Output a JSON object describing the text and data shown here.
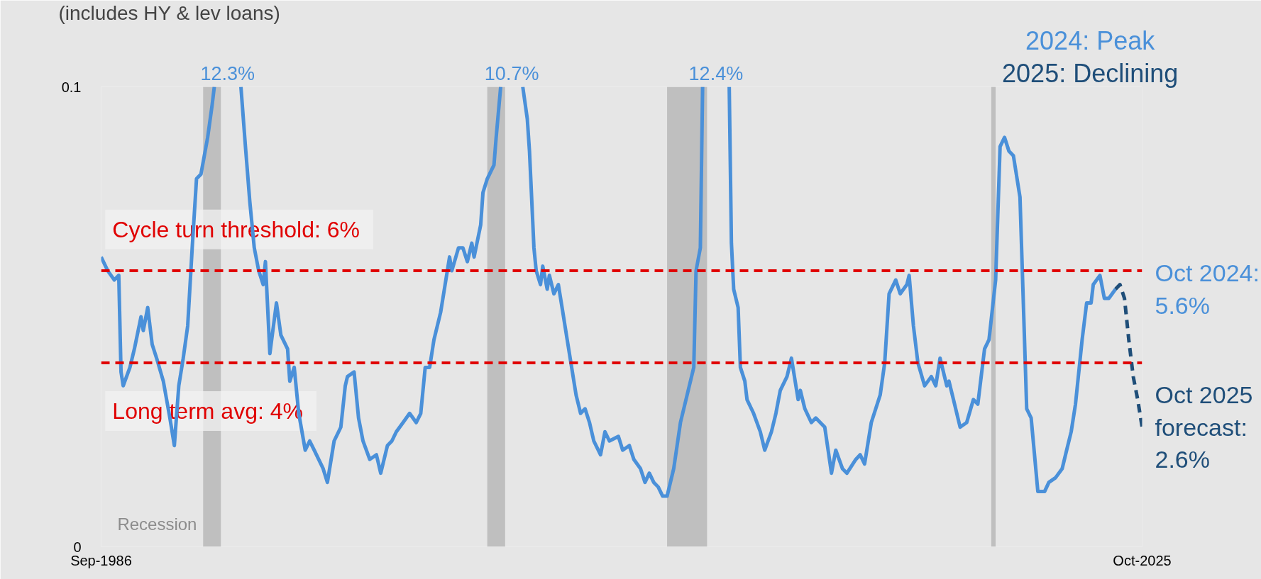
{
  "chart_data": {
    "type": "line",
    "title": "(includes HY & lev loans)",
    "xlim": [
      "1986-09",
      "2025-10"
    ],
    "xticks": [
      {
        "value": "1986-09",
        "label": "Sep-1986"
      },
      {
        "value": "2025-10",
        "label": "Oct-2025"
      }
    ],
    "ylim": [
      0,
      0.1
    ],
    "yticks": [
      0,
      0.1
    ],
    "legend": "top right",
    "marker": "none",
    "series": [
      {
        "name": "2024: Peak",
        "color": "#4a90d9",
        "line_style": "solid",
        "x": [
          "1986-09",
          "1986-12",
          "1987-03",
          "1987-05",
          "1987-06",
          "1987-07",
          "1987-10",
          "1987-12",
          "1988-03",
          "1988-04",
          "1988-06",
          "1988-08",
          "1988-10",
          "1989-01",
          "1989-04",
          "1989-06",
          "1989-08",
          "1989-10",
          "1989-12",
          "1990-02",
          "1990-04",
          "1990-06",
          "1990-09",
          "1990-11",
          "1990-12",
          "1991-06",
          "1991-12",
          "1992-02",
          "1992-04",
          "1992-06",
          "1992-08",
          "1992-10",
          "1992-11",
          "1993-01",
          "1993-04",
          "1993-06",
          "1993-09",
          "1993-10",
          "1993-12",
          "1994-02",
          "1994-05",
          "1994-07",
          "1994-09",
          "1995-01",
          "1995-03",
          "1995-06",
          "1995-09",
          "1995-11",
          "1995-12",
          "1996-03",
          "1996-05",
          "1996-07",
          "1996-10",
          "1997-01",
          "1997-03",
          "1997-06",
          "1997-08",
          "1997-10",
          "1998-01",
          "1998-04",
          "1998-07",
          "1998-09",
          "1998-11",
          "1999-01",
          "1999-03",
          "1999-06",
          "1999-08",
          "1999-10",
          "1999-11",
          "2000-02",
          "2000-04",
          "2000-06",
          "2000-08",
          "2000-09",
          "2000-12",
          "2001-01",
          "2001-03",
          "2001-06",
          "2001-07",
          "2001-09",
          "2002-02",
          "2002-07",
          "2002-09",
          "2002-10",
          "2002-12",
          "2003-01",
          "2003-03",
          "2003-04",
          "2003-06",
          "2003-07",
          "2003-09",
          "2003-11",
          "2004-01",
          "2004-03",
          "2004-05",
          "2004-07",
          "2004-09",
          "2004-11",
          "2005-01",
          "2005-03",
          "2005-06",
          "2005-08",
          "2005-10",
          "2006-02",
          "2006-04",
          "2006-07",
          "2006-09",
          "2006-12",
          "2007-02",
          "2007-04",
          "2007-06",
          "2007-08",
          "2007-10",
          "2007-12",
          "2008-03",
          "2008-06",
          "2008-12",
          "2009-01",
          "2009-03",
          "2009-04",
          "2009-10",
          "2010-04",
          "2010-05",
          "2010-06",
          "2010-08",
          "2010-09",
          "2010-11",
          "2010-12",
          "2011-03",
          "2011-06",
          "2011-08",
          "2011-11",
          "2012-01",
          "2012-03",
          "2012-06",
          "2012-08",
          "2012-11",
          "2012-12",
          "2013-02",
          "2013-05",
          "2013-07",
          "2013-11",
          "2014-02",
          "2014-04",
          "2014-07",
          "2014-09",
          "2015-01",
          "2015-03",
          "2015-05",
          "2015-08",
          "2015-12",
          "2016-02",
          "2016-04",
          "2016-07",
          "2016-09",
          "2016-12",
          "2017-01",
          "2017-03",
          "2017-05",
          "2017-08",
          "2017-11",
          "2018-01",
          "2018-03",
          "2018-06",
          "2018-07",
          "2018-09",
          "2018-12",
          "2019-03",
          "2019-06",
          "2019-08",
          "2019-11",
          "2020-01",
          "2020-04",
          "2020-06",
          "2020-08",
          "2020-10",
          "2020-12",
          "2021-03",
          "2021-06",
          "2021-08",
          "2021-11",
          "2022-02",
          "2022-04",
          "2022-07",
          "2022-10",
          "2022-12",
          "2023-02",
          "2023-04",
          "2023-07",
          "2023-09",
          "2023-11",
          "2023-12",
          "2024-03",
          "2024-05",
          "2024-07",
          "2024-10"
        ],
        "values": [
          0.063,
          0.06,
          0.058,
          0.059,
          0.038,
          0.035,
          0.039,
          0.043,
          0.05,
          0.047,
          0.052,
          0.044,
          0.041,
          0.036,
          0.028,
          0.022,
          0.035,
          0.041,
          0.048,
          0.065,
          0.08,
          0.081,
          0.089,
          0.096,
          0.1,
          null,
          0.1,
          0.087,
          0.075,
          0.065,
          0.06,
          0.057,
          0.062,
          0.042,
          0.053,
          0.046,
          0.043,
          0.036,
          0.039,
          0.029,
          0.021,
          0.023,
          0.021,
          0.017,
          0.014,
          0.023,
          0.026,
          0.035,
          0.037,
          0.038,
          0.028,
          0.023,
          0.019,
          0.02,
          0.016,
          0.022,
          0.023,
          0.025,
          0.027,
          0.029,
          0.027,
          0.029,
          0.039,
          0.039,
          0.045,
          0.051,
          0.057,
          0.063,
          0.06,
          0.065,
          0.065,
          0.062,
          0.066,
          0.063,
          0.07,
          0.077,
          0.08,
          0.083,
          0.089,
          0.1,
          null,
          0.1,
          0.093,
          0.086,
          0.065,
          0.06,
          0.057,
          0.061,
          0.056,
          0.059,
          0.055,
          0.057,
          0.051,
          0.045,
          0.039,
          0.033,
          0.029,
          0.03,
          0.027,
          0.023,
          0.02,
          0.025,
          0.023,
          0.024,
          0.021,
          0.022,
          0.019,
          0.017,
          0.014,
          0.016,
          0.014,
          0.013,
          0.011,
          0.011,
          0.017,
          0.027,
          0.039,
          0.06,
          0.065,
          0.1,
          null,
          0.1,
          0.066,
          0.056,
          0.052,
          0.039,
          0.036,
          0.032,
          0.029,
          0.025,
          0.021,
          0.025,
          0.029,
          0.034,
          0.037,
          0.041,
          0.032,
          0.034,
          0.03,
          0.027,
          0.028,
          0.026,
          0.016,
          0.021,
          0.017,
          0.016,
          0.019,
          0.02,
          0.018,
          0.027,
          0.033,
          0.04,
          0.055,
          0.058,
          0.055,
          0.057,
          0.059,
          0.048,
          0.04,
          0.035,
          0.037,
          0.035,
          0.041,
          0.035,
          0.036,
          0.032,
          0.026,
          0.027,
          0.032,
          0.031,
          0.043,
          0.045,
          0.058,
          0.087,
          0.089,
          0.086,
          0.085,
          0.076,
          0.03,
          0.028,
          0.012,
          0.012,
          0.014,
          0.015,
          0.017,
          0.021,
          0.025,
          0.031,
          0.045,
          0.053,
          0.053,
          0.057,
          0.059,
          0.054,
          0.054,
          0.056
        ]
      },
      {
        "name": "2025: Declining",
        "color": "#1f4e79",
        "line_style": "dashed",
        "x": [
          "2024-10",
          "2024-12",
          "2025-02",
          "2025-04",
          "2025-06",
          "2025-08",
          "2025-10"
        ],
        "values": [
          0.056,
          0.057,
          0.054,
          0.045,
          0.037,
          0.032,
          0.026
        ]
      }
    ],
    "ref_lines": [
      {
        "axis": "y",
        "value": 0.06,
        "label": "Cycle turn threshold:  6%",
        "color": "#e00000",
        "line_style": "dashed"
      },
      {
        "axis": "y",
        "value": 0.04,
        "label": "Long term avg:  4%",
        "color": "#e00000",
        "line_style": "dashed"
      }
    ],
    "bands": [
      {
        "axis": "x",
        "from": "1990-07",
        "to": "1991-03",
        "label": "Recession",
        "color": "#bfbfbf"
      },
      {
        "axis": "x",
        "from": "2001-03",
        "to": "2001-11",
        "label": null,
        "color": "#bfbfbf"
      },
      {
        "axis": "x",
        "from": "2007-12",
        "to": "2009-06",
        "label": null,
        "color": "#bfbfbf"
      },
      {
        "axis": "x",
        "from": "2020-02",
        "to": "2020-04",
        "label": null,
        "color": "#bfbfbf"
      }
    ],
    "annotations": [
      "12.3%",
      "10.7%",
      "12.4%",
      {
        "text": "Oct 2024: 5.6%",
        "x": "2024-10",
        "y": 0.056
      },
      {
        "text": "Oct 2025 forecast: 2.6%",
        "x": "2025-10",
        "y": 0.026
      }
    ]
  }
}
